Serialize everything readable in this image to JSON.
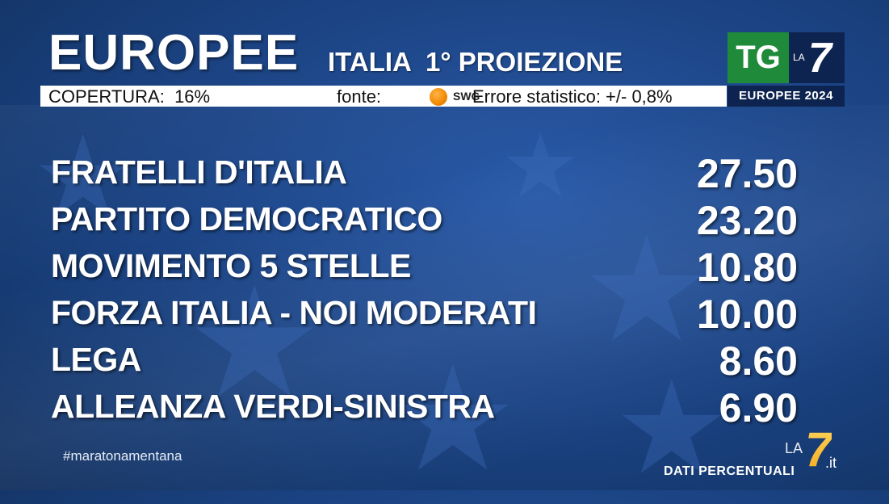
{
  "header": {
    "title": "EUROPEE",
    "subtitle": "ITALIA  1° PROIEZIONE"
  },
  "info_bar": {
    "coverage": "COPERTURA:  16%",
    "source_label": "fonte:",
    "source_name": "SWG",
    "stat_error": "Errore statistico: +/- 0,8%"
  },
  "logo": {
    "tg": "TG",
    "la": "LA",
    "seven": "7",
    "strip": "EUROPEE 2024"
  },
  "results": [
    {
      "party": "FRATELLI D'ITALIA",
      "value": "27.50"
    },
    {
      "party": "PARTITO DEMOCRATICO",
      "value": "23.20"
    },
    {
      "party": "MOVIMENTO 5 STELLE",
      "value": "10.80"
    },
    {
      "party": "FORZA ITALIA - NOI MODERATI",
      "value": "10.00"
    },
    {
      "party": "LEGA",
      "value": "8.60"
    },
    {
      "party": "ALLEANZA VERDI-SINISTRA",
      "value": "6.90"
    }
  ],
  "footer": {
    "hashtag": "#maratonamentana",
    "note": "DATI PERCENTUALI",
    "corner_la": "LA",
    "corner_seven": "7",
    "corner_it": ".it"
  },
  "colors": {
    "background": "#1d4688",
    "tg_green": "#1f8a3a",
    "la7_navy": "#0e2450",
    "corner_gold": "#f4a81c"
  }
}
